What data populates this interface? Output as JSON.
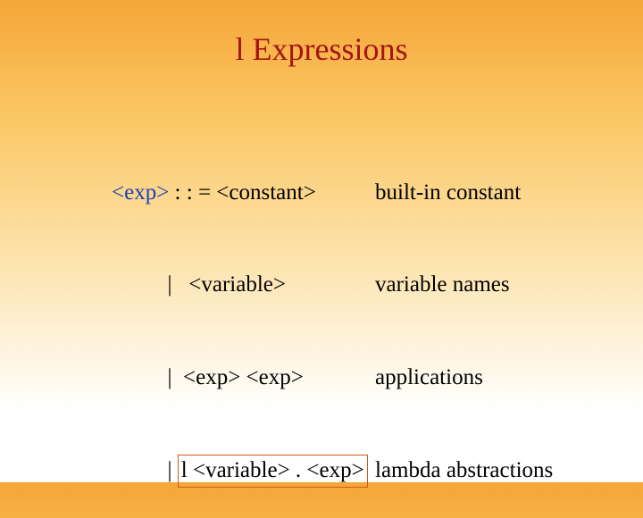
{
  "colors": {
    "title": "#a31515",
    "lhs_nonterminal": "#1f3fb8",
    "text": "#000000",
    "highlight_border": "#d05a1a"
  },
  "title": {
    "lambda": "l",
    "text": " Expressions"
  },
  "grammar": {
    "lhs": "<exp>",
    "sep": " : : = ",
    "rows": [
      {
        "production": "<constant>",
        "desc": "built-in constant"
      },
      {
        "production": " <variable>",
        "desc": "variable names"
      },
      {
        "production": "<exp> <exp>",
        "desc": "applications"
      },
      {
        "production_lambda": "l",
        "production_rest": " <variable> . <exp>",
        "desc": "lambda abstractions"
      }
    ],
    "bar": "|  "
  }
}
